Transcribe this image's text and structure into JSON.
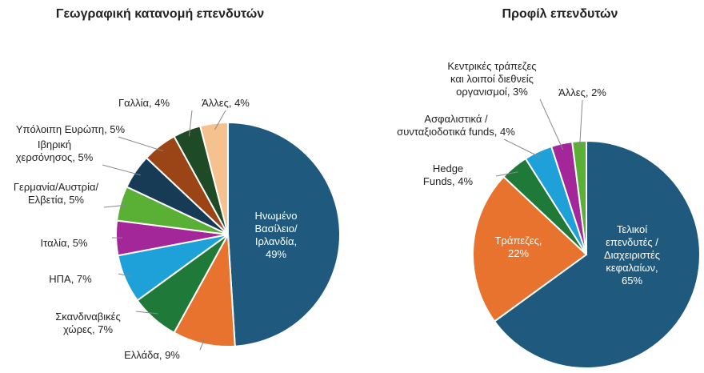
{
  "chart_data": [
    {
      "type": "pie",
      "title": "Γεωγραφική κατανομή επενδυτών",
      "categories": [
        "Ηνωμένο\nΒασίλειο/\nΙρλανδία,\n49%",
        "Ελλάδα, 9%",
        "Σκανδιναβικές\nχώρες, 7%",
        "ΗΠΑ, 7%",
        "Ιταλία, 5%",
        "Γερμανία/Αυστρία/\nΕλβετία, 5%",
        "Ιβηρική\nχερσόνησος, 5%",
        "Υπόλοιπη Ευρώπη, 5%",
        "Γαλλία, 4%",
        "Άλλες, 4%"
      ],
      "values": [
        49,
        9,
        7,
        7,
        5,
        5,
        5,
        5,
        4,
        4
      ],
      "colors": [
        "#1f5a7e",
        "#e8732f",
        "#1f7a3a",
        "#1da1d8",
        "#a4279a",
        "#5aaf35",
        "#173a55",
        "#9b4517",
        "#1e4a25",
        "#f5c28f"
      ]
    },
    {
      "type": "pie",
      "title": "Προφίλ επενδυτών",
      "categories": [
        "Τελικοί\nεπενδυτές /\nΔιαχειριστές\nκεφαλαίων,\n65%",
        "Τράπεζες,\n22%",
        "Hedge\nFunds, 4%",
        "Ασφαλιστικά /\nσυνταξιοδοτικά funds, 4%",
        "Κεντρικές τράπεζες\nκαι λοιποί διεθνείς\nοργανισμοί, 3%",
        "Άλλες, 2%"
      ],
      "values": [
        65,
        22,
        4,
        4,
        3,
        2
      ],
      "colors": [
        "#1f5a7e",
        "#e8732f",
        "#1f7a3a",
        "#1da1d8",
        "#a4279a",
        "#5aaf35"
      ]
    }
  ]
}
